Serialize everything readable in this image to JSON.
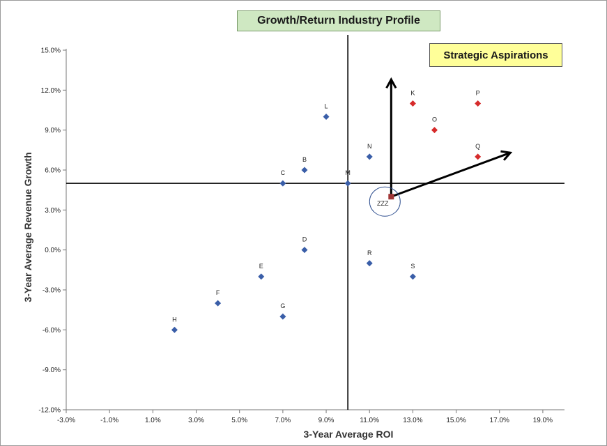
{
  "chart_data": {
    "type": "scatter",
    "title": "Growth/Return Industry Profile",
    "xlabel": "3-Year Average ROI",
    "ylabel": "3-Year Average  Revenue Growth",
    "xlim": [
      -3,
      20
    ],
    "ylim": [
      -12,
      16
    ],
    "x_ticks": [
      "-3.0%",
      "-1.0%",
      "1.0%",
      "3.0%",
      "5.0%",
      "7.0%",
      "9.0%",
      "11.0%",
      "13.0%",
      "15.0%",
      "17.0%",
      "19.0%"
    ],
    "x_tick_values": [
      -3,
      -1,
      1,
      3,
      5,
      7,
      9,
      11,
      13,
      15,
      17,
      19
    ],
    "y_ticks": [
      "15.0%",
      "12.0%",
      "9.0%",
      "6.0%",
      "3.0%",
      "0.0%",
      "-3.0%",
      "-6.0%",
      "-9.0%",
      "-12.0%"
    ],
    "y_tick_values": [
      15,
      12,
      9,
      6,
      3,
      0,
      -3,
      -6,
      -9,
      -12
    ],
    "reference_lines": {
      "x": 10,
      "y": 5
    },
    "series": [
      {
        "color": "#3a5ea8",
        "points": [
          {
            "label": "L",
            "x": 9,
            "y": 10
          },
          {
            "label": "B",
            "x": 8,
            "y": 6
          },
          {
            "label": "C",
            "x": 7,
            "y": 5
          },
          {
            "label": "M",
            "x": 10,
            "y": 5
          },
          {
            "label": "N",
            "x": 11,
            "y": 7
          },
          {
            "label": "D",
            "x": 8,
            "y": 0
          },
          {
            "label": "R",
            "x": 11,
            "y": -1
          },
          {
            "label": "E",
            "x": 6,
            "y": -2
          },
          {
            "label": "S",
            "x": 13,
            "y": -2
          },
          {
            "label": "F",
            "x": 4,
            "y": -4
          },
          {
            "label": "G",
            "x": 7,
            "y": -5
          },
          {
            "label": "H",
            "x": 2,
            "y": -6
          }
        ]
      },
      {
        "color": "#d62b2b",
        "points": [
          {
            "label": "K",
            "x": 13,
            "y": 11
          },
          {
            "label": "P",
            "x": 16,
            "y": 11
          },
          {
            "label": "O",
            "x": 14,
            "y": 9
          },
          {
            "label": "Q",
            "x": 16,
            "y": 7
          }
        ]
      },
      {
        "color": "#a03535",
        "points": [
          {
            "label": "ZZZ",
            "x": 12,
            "y": 4
          }
        ]
      }
    ],
    "annotation": "Strategic Aspirations",
    "arrows": [
      {
        "from": [
          12,
          4
        ],
        "to": [
          12,
          12.8
        ]
      },
      {
        "from": [
          12,
          4
        ],
        "to": [
          17.5,
          7.3
        ]
      }
    ],
    "grid": false
  }
}
